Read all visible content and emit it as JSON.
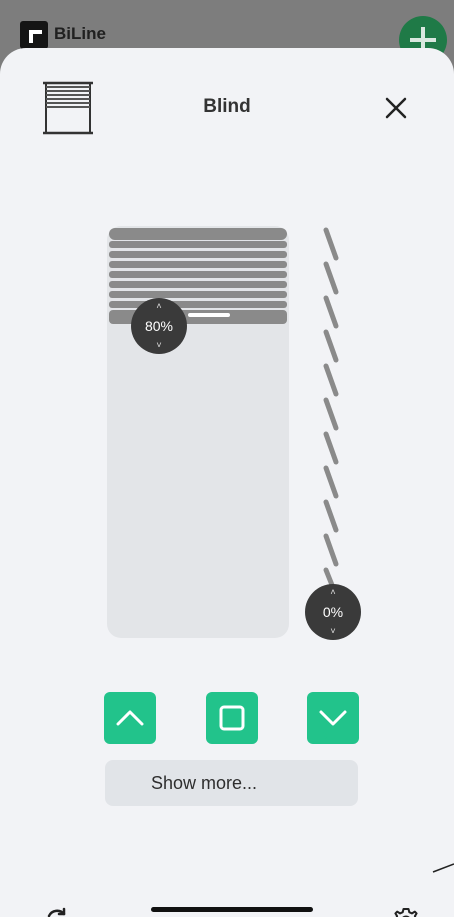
{
  "background_app": {
    "name": "BiLine",
    "add_icon": "plus-icon",
    "accent_color": "#1f7a47"
  },
  "header": {
    "icon": "venetian-blind-icon",
    "title": "Blind",
    "close_icon": "close-icon"
  },
  "blind": {
    "position_label": "80%",
    "position_value": 80,
    "tilt_label": "0%",
    "tilt_value": 0,
    "knob_up_glyph": "˄",
    "knob_down_glyph": "˅"
  },
  "controls": {
    "up_icon": "chevron-up-icon",
    "stop_icon": "stop-square-icon",
    "down_icon": "chevron-down-icon",
    "accent_color": "#22c38b"
  },
  "show_more": {
    "label": "Show more...",
    "chevron": "›"
  },
  "footer": {
    "refresh_icon": "refresh-icon",
    "settings_icon": "gear-icon"
  }
}
